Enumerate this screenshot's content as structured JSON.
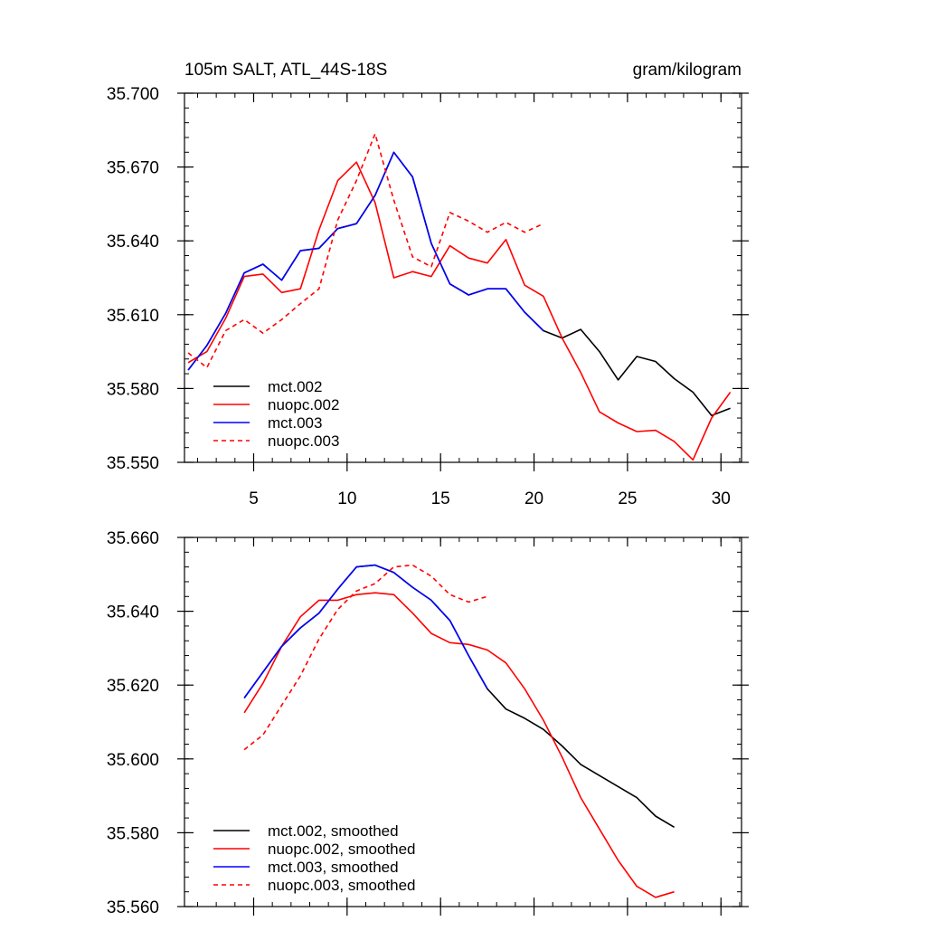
{
  "chart_data": [
    {
      "type": "line",
      "title": "105m SALT, ATL_44S-18S",
      "units": "gram/kilogram",
      "xlim": [
        1.3,
        31.1
      ],
      "ylim": [
        35.55,
        35.7
      ],
      "xticks": [
        5,
        10,
        15,
        20,
        25,
        30
      ],
      "xtick_labels": [
        "5",
        "10",
        "15",
        "20",
        "25",
        "30"
      ],
      "yticks": [
        35.55,
        35.58,
        35.61,
        35.64,
        35.67,
        35.7
      ],
      "ytick_labels": [
        "35.550",
        "35.580",
        "35.610",
        "35.640",
        "35.670",
        "35.700"
      ],
      "legend": {
        "position": "bottom-left"
      },
      "series": [
        {
          "name": "mct.002",
          "color": "#000000",
          "dash": "solid",
          "x": [
            1.5,
            2.5,
            3.5,
            4.5,
            5.5,
            6.5,
            7.5,
            8.5,
            9.5,
            10.5,
            11.5,
            12.5,
            13.5,
            14.5,
            15.5,
            16.5,
            17.5,
            18.5,
            19.5,
            20.5,
            21.5,
            22.5,
            23.5,
            24.5,
            25.5,
            26.5,
            27.5,
            28.5,
            29.5,
            30.5
          ],
          "y": [
            35.5875,
            35.5975,
            35.6105,
            35.627,
            35.6305,
            35.624,
            35.636,
            35.637,
            35.645,
            35.647,
            35.6585,
            35.676,
            35.666,
            35.639,
            35.6225,
            35.618,
            35.6205,
            35.6205,
            35.611,
            35.6035,
            35.6005,
            35.604,
            35.595,
            35.5835,
            35.593,
            35.591,
            35.584,
            35.5785,
            35.569,
            35.572
          ]
        },
        {
          "name": "nuopc.002",
          "color": "#ff0000",
          "dash": "solid",
          "x": [
            1.5,
            2.5,
            3.5,
            4.5,
            5.5,
            6.5,
            7.5,
            8.5,
            9.5,
            10.5,
            11.5,
            12.5,
            13.5,
            14.5,
            15.5,
            16.5,
            17.5,
            18.5,
            19.5,
            20.5,
            21.5,
            22.5,
            23.5,
            24.5,
            25.5,
            26.5,
            27.5,
            28.5,
            29.5,
            30.5
          ],
          "y": [
            35.5905,
            35.595,
            35.6085,
            35.6255,
            35.6265,
            35.619,
            35.6205,
            35.6445,
            35.6645,
            35.672,
            35.6555,
            35.625,
            35.6275,
            35.6255,
            35.638,
            35.633,
            35.631,
            35.6405,
            35.622,
            35.6175,
            35.6005,
            35.5865,
            35.5705,
            35.566,
            35.5625,
            35.563,
            35.5585,
            35.551,
            35.568,
            35.5785
          ]
        },
        {
          "name": "mct.003",
          "color": "#0000ff",
          "dash": "solid",
          "x": [
            1.5,
            2.5,
            3.5,
            4.5,
            5.5,
            6.5,
            7.5,
            8.5,
            9.5,
            10.5,
            11.5,
            12.5,
            13.5,
            14.5,
            15.5,
            16.5,
            17.5,
            18.5,
            19.5,
            20.5
          ],
          "y": [
            35.5875,
            35.5975,
            35.6105,
            35.627,
            35.6305,
            35.624,
            35.636,
            35.637,
            35.645,
            35.647,
            35.6585,
            35.676,
            35.666,
            35.639,
            35.6225,
            35.618,
            35.6205,
            35.6205,
            35.611,
            35.6035
          ]
        },
        {
          "name": "nuopc.003",
          "color": "#ff0000",
          "dash": "dashed",
          "x": [
            1.5,
            2.5,
            3.5,
            4.5,
            5.5,
            6.5,
            7.5,
            8.5,
            9.5,
            10.5,
            11.5,
            12.5,
            13.5,
            14.5,
            15.5,
            16.5,
            17.5,
            18.5,
            19.5,
            20.5
          ],
          "y": [
            35.5945,
            35.5885,
            35.6035,
            35.608,
            35.6025,
            35.608,
            35.6145,
            35.6205,
            35.6485,
            35.6645,
            35.6835,
            35.6565,
            35.6335,
            35.6295,
            35.6515,
            35.648,
            35.6435,
            35.6475,
            35.6435,
            35.647
          ]
        }
      ]
    },
    {
      "type": "line",
      "xlim": [
        1.3,
        31.1
      ],
      "ylim": [
        35.56,
        35.66
      ],
      "xticks": [
        5,
        10,
        15,
        20,
        25,
        30
      ],
      "yticks": [
        35.56,
        35.58,
        35.6,
        35.62,
        35.64,
        35.66
      ],
      "ytick_labels": [
        "35.560",
        "35.580",
        "35.600",
        "35.620",
        "35.640",
        "35.660"
      ],
      "legend": {
        "position": "bottom-left"
      },
      "series": [
        {
          "name": "mct.002, smoothed",
          "color": "#000000",
          "dash": "solid",
          "x": [
            4.5,
            5.5,
            6.5,
            7.5,
            8.5,
            9.5,
            10.5,
            11.5,
            12.5,
            13.5,
            14.5,
            15.5,
            16.5,
            17.5,
            18.5,
            19.5,
            20.5,
            21.5,
            22.5,
            23.5,
            24.5,
            25.5,
            26.5,
            27.5
          ],
          "y": [
            35.6165,
            35.6235,
            35.6305,
            35.6355,
            35.6395,
            35.646,
            35.652,
            35.6525,
            35.6505,
            35.6465,
            35.643,
            35.6375,
            35.628,
            35.619,
            35.6135,
            35.611,
            35.608,
            35.6035,
            35.5985,
            35.5955,
            35.5925,
            35.5895,
            35.5845,
            35.5815
          ]
        },
        {
          "name": "nuopc.002, smoothed",
          "color": "#ff0000",
          "dash": "solid",
          "x": [
            4.5,
            5.5,
            6.5,
            7.5,
            8.5,
            9.5,
            10.5,
            11.5,
            12.5,
            13.5,
            14.5,
            15.5,
            16.5,
            17.5,
            18.5,
            19.5,
            20.5,
            21.5,
            22.5,
            23.5,
            24.5,
            25.5,
            26.5,
            27.5
          ],
          "y": [
            35.6125,
            35.6205,
            35.6305,
            35.6385,
            35.643,
            35.643,
            35.6445,
            35.645,
            35.6445,
            35.6395,
            35.634,
            35.6315,
            35.631,
            35.6295,
            35.626,
            35.619,
            35.6105,
            35.6005,
            35.5895,
            35.581,
            35.5725,
            35.5655,
            35.5625,
            35.564
          ]
        },
        {
          "name": "mct.003, smoothed",
          "color": "#0000ff",
          "dash": "solid",
          "x": [
            4.5,
            5.5,
            6.5,
            7.5,
            8.5,
            9.5,
            10.5,
            11.5,
            12.5,
            13.5,
            14.5,
            15.5,
            16.5,
            17.5
          ],
          "y": [
            35.6165,
            35.6235,
            35.6305,
            35.6355,
            35.6395,
            35.646,
            35.652,
            35.6525,
            35.6505,
            35.6465,
            35.643,
            35.6375,
            35.628,
            35.619
          ]
        },
        {
          "name": "nuopc.003, smoothed",
          "color": "#ff0000",
          "dash": "dashed",
          "x": [
            4.5,
            5.5,
            6.5,
            7.5,
            8.5,
            9.5,
            10.5,
            11.5,
            12.5,
            13.5,
            14.5,
            15.5,
            16.5,
            17.5
          ],
          "y": [
            35.6025,
            35.6065,
            35.6145,
            35.6225,
            35.6325,
            35.6405,
            35.6455,
            35.6475,
            35.652,
            35.6525,
            35.6495,
            35.6445,
            35.6425,
            35.644
          ]
        }
      ]
    }
  ]
}
